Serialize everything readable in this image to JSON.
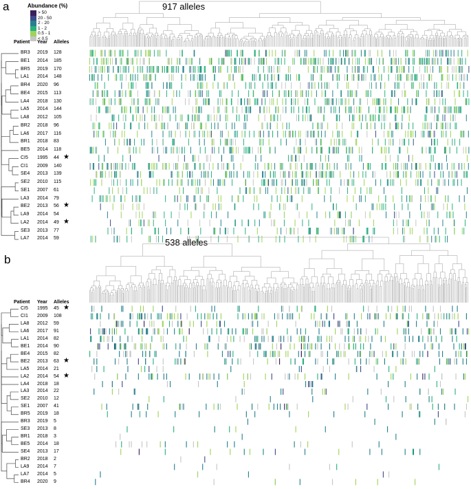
{
  "legend": {
    "title": "Abundance (%)",
    "items": [
      {
        "label": "> 50",
        "color": "#3b1f5c"
      },
      {
        "label": "20 - 50",
        "color": "#3e4a89"
      },
      {
        "label": "2 - 20",
        "color": "#27808e"
      },
      {
        "label": "1 - 2",
        "color": "#2ab07f"
      },
      {
        "label": "0.5 - 1",
        "color": "#9fd35a"
      },
      {
        "label": "< 0.5",
        "color": "#c6c6c6"
      }
    ]
  },
  "headers": {
    "patient": "Patient",
    "year": "Year",
    "alleles": "Alleles"
  },
  "star": "★",
  "chart_data": [
    {
      "type": "heatmap",
      "panel": "a",
      "title": "917 alleles",
      "n_alleles": 917,
      "rows": [
        {
          "patient": "BR3",
          "year": "2019",
          "alleles": "128",
          "star": false
        },
        {
          "patient": "BE1",
          "year": "2014",
          "alleles": "185",
          "star": false
        },
        {
          "patient": "BR5",
          "year": "2019",
          "alleles": "170",
          "star": false
        },
        {
          "patient": "LA1",
          "year": "2014",
          "alleles": "148",
          "star": false
        },
        {
          "patient": "BR4",
          "year": "2020",
          "alleles": "96",
          "star": false
        },
        {
          "patient": "BE4",
          "year": "2015",
          "alleles": "113",
          "star": false
        },
        {
          "patient": "LA4",
          "year": "2018",
          "alleles": "130",
          "star": false
        },
        {
          "patient": "LA5",
          "year": "2014",
          "alleles": "144",
          "star": false
        },
        {
          "patient": "LA8",
          "year": "2012",
          "alleles": "105",
          "star": false
        },
        {
          "patient": "BR2",
          "year": "2018",
          "alleles": "96",
          "star": false
        },
        {
          "patient": "LA6",
          "year": "2017",
          "alleles": "116",
          "star": false
        },
        {
          "patient": "BR1",
          "year": "2018",
          "alleles": "83",
          "star": false
        },
        {
          "patient": "BE5",
          "year": "2014",
          "alleles": "118",
          "star": false
        },
        {
          "patient": "CI5",
          "year": "1995",
          "alleles": "44",
          "star": true
        },
        {
          "patient": "CI1",
          "year": "2009",
          "alleles": "140",
          "star": false
        },
        {
          "patient": "SE4",
          "year": "2013",
          "alleles": "139",
          "star": false
        },
        {
          "patient": "SE2",
          "year": "2010",
          "alleles": "115",
          "star": false
        },
        {
          "patient": "SE1",
          "year": "2007",
          "alleles": "61",
          "star": false
        },
        {
          "patient": "LA3",
          "year": "2014",
          "alleles": "79",
          "star": false
        },
        {
          "patient": "BE2",
          "year": "2013",
          "alleles": "56",
          "star": true
        },
        {
          "patient": "LA9",
          "year": "2014",
          "alleles": "54",
          "star": false
        },
        {
          "patient": "LA2",
          "year": "2014",
          "alleles": "49",
          "star": true
        },
        {
          "patient": "SE3",
          "year": "2013",
          "alleles": "77",
          "star": false
        },
        {
          "patient": "LA7",
          "year": "2014",
          "alleles": "59",
          "star": false
        }
      ]
    },
    {
      "type": "heatmap",
      "panel": "b",
      "title": "538 alleles",
      "n_alleles": 538,
      "rows": [
        {
          "patient": "CI5",
          "year": "1995",
          "alleles": "45",
          "star": true
        },
        {
          "patient": "CI1",
          "year": "2009",
          "alleles": "108",
          "star": false
        },
        {
          "patient": "LA8",
          "year": "2012",
          "alleles": "59",
          "star": false
        },
        {
          "patient": "LA6",
          "year": "2017",
          "alleles": "91",
          "star": false
        },
        {
          "patient": "LA1",
          "year": "2014",
          "alleles": "82",
          "star": false
        },
        {
          "patient": "BE1",
          "year": "2014",
          "alleles": "90",
          "star": false
        },
        {
          "patient": "BE4",
          "year": "2015",
          "alleles": "82",
          "star": false
        },
        {
          "patient": "BE2",
          "year": "2013",
          "alleles": "63",
          "star": true
        },
        {
          "patient": "LA5",
          "year": "2014",
          "alleles": "21",
          "star": false
        },
        {
          "patient": "LA2",
          "year": "2014",
          "alleles": "54",
          "star": true
        },
        {
          "patient": "LA4",
          "year": "2018",
          "alleles": "18",
          "star": false
        },
        {
          "patient": "LA3",
          "year": "2014",
          "alleles": "22",
          "star": false
        },
        {
          "patient": "SE2",
          "year": "2010",
          "alleles": "12",
          "star": false
        },
        {
          "patient": "SE1",
          "year": "2007",
          "alleles": "41",
          "star": false
        },
        {
          "patient": "BR5",
          "year": "2019",
          "alleles": "18",
          "star": false
        },
        {
          "patient": "BR3",
          "year": "2019",
          "alleles": "5",
          "star": false
        },
        {
          "patient": "SE3",
          "year": "2013",
          "alleles": "8",
          "star": false
        },
        {
          "patient": "BR1",
          "year": "2018",
          "alleles": "3",
          "star": false
        },
        {
          "patient": "BE5",
          "year": "2014",
          "alleles": "18",
          "star": false
        },
        {
          "patient": "SE4",
          "year": "2013",
          "alleles": "17",
          "star": false
        },
        {
          "patient": "BR2",
          "year": "2018",
          "alleles": "2",
          "star": false
        },
        {
          "patient": "LA9",
          "year": "2014",
          "alleles": "7",
          "star": false
        },
        {
          "patient": "LA7",
          "year": "2014",
          "alleles": "5",
          "star": false
        },
        {
          "patient": "BR4",
          "year": "2020",
          "alleles": "9",
          "star": false
        }
      ]
    }
  ],
  "panels": {
    "a": "a",
    "b": "b"
  }
}
